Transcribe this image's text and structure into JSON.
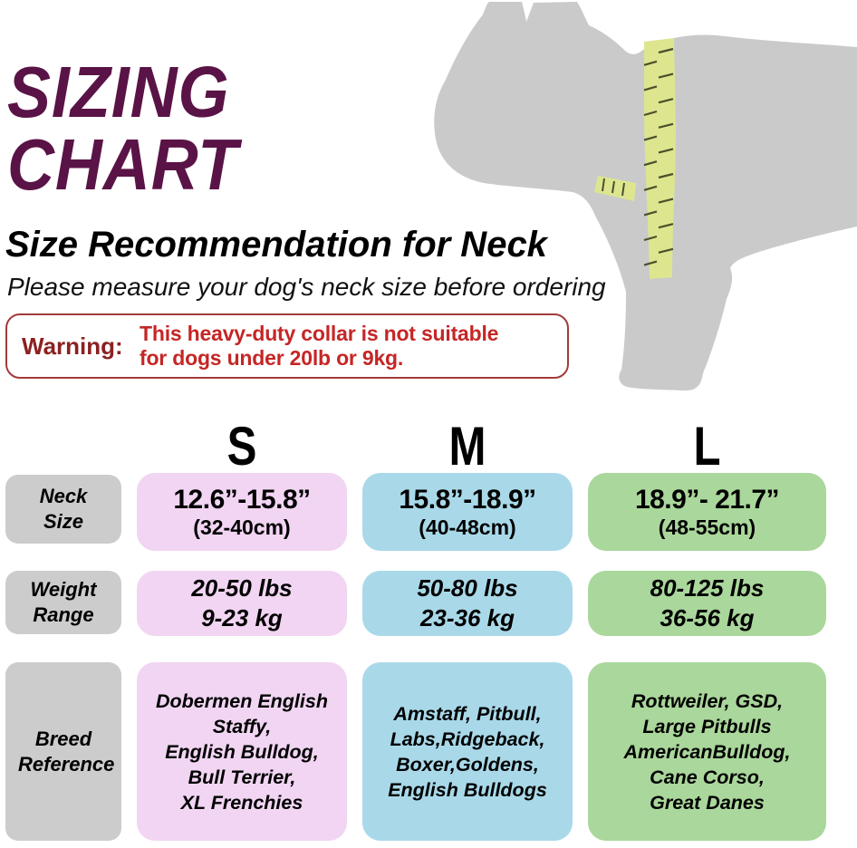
{
  "header": {
    "title_line1": "SIZING",
    "title_line2": "CHART",
    "subtitle": "Size Recommendation for Neck",
    "note": "Please measure your dog's neck size before ordering"
  },
  "warning": {
    "label": "Warning:",
    "text_line1": "This heavy-duty collar is not suitable",
    "text_line2": "for dogs under 20lb or 9kg."
  },
  "dog_graphic": {
    "icon": "dog-silhouette-with-measuring-tape",
    "silhouette_color": "#cacaca",
    "tape_color": "#dde68f",
    "tick_color": "#4b4f2c"
  },
  "sizing_table": {
    "row_labels": {
      "neck": "Neck Size",
      "weight": "Weight Range",
      "breed": "Breed Reference"
    },
    "columns": [
      {
        "size": "S",
        "color": "#f1d5f2",
        "neck_in": "12.6”-15.8”",
        "neck_cm": "(32-40cm)",
        "weight_lbs": "20-50 lbs",
        "weight_kg": "9-23 kg",
        "breeds": [
          "Dobermen English",
          "Staffy,",
          "English Bulldog,",
          "Bull Terrier,",
          "XL Frenchies"
        ]
      },
      {
        "size": "M",
        "color": "#a9d9e9",
        "neck_in": "15.8”-18.9”",
        "neck_cm": "(40-48cm)",
        "weight_lbs": "50-80 lbs",
        "weight_kg": "23-36 kg",
        "breeds": [
          "Amstaff, Pitbull,",
          "Labs,Ridgeback,",
          "Boxer,Goldens,",
          "English Bulldogs"
        ]
      },
      {
        "size": "L",
        "color": "#aad79b",
        "neck_in": "18.9”- 21.7”",
        "neck_cm": "(48-55cm)",
        "weight_lbs": "80-125 lbs",
        "weight_kg": "36-56 kg",
        "breeds": [
          "Rottweiler, GSD,",
          "Large Pitbulls",
          "AmericanBulldog,",
          "Cane Corso,",
          "Great Danes"
        ]
      }
    ]
  },
  "chart_data": {
    "type": "table",
    "title": "SIZING CHART — Size Recommendation for Neck",
    "columns": [
      "S",
      "M",
      "L"
    ],
    "rows": [
      {
        "label": "Neck Size",
        "values": [
          "12.6”-15.8” (32-40cm)",
          "15.8”-18.9” (40-48cm)",
          "18.9”- 21.7” (48-55cm)"
        ]
      },
      {
        "label": "Weight Range",
        "values": [
          "20-50 lbs 9-23 kg",
          "50-80 lbs 23-36 kg",
          "80-125 lbs 36-56 kg"
        ]
      },
      {
        "label": "Breed Reference",
        "values": [
          "Dobermen English Staffy, English Bulldog, Bull Terrier, XL Frenchies",
          "Amstaff, Pitbull, Labs,Ridgeback, Boxer,Goldens, English Bulldogs",
          "Rottweiler, GSD, Large Pitbulls AmericanBulldog, Cane Corso, Great Danes"
        ]
      }
    ]
  },
  "colors": {
    "title": "#5a1346",
    "warning_label": "#8b2121",
    "warning_text": "#c52626",
    "warning_border": "#a23a3a",
    "label_box": "#cccccc",
    "size_s": "#f1d5f2",
    "size_m": "#a9d9e9",
    "size_l": "#aad79b"
  }
}
